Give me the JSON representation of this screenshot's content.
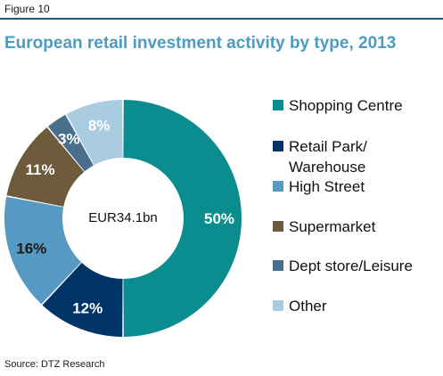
{
  "figure_label": "Figure 10",
  "source": "Source: DTZ Research",
  "colors": {
    "rule": "#1f5b73",
    "title": "#4c9cc0"
  },
  "chart_data": {
    "type": "pie",
    "variant": "donut",
    "title": "European retail investment activity by type, 2013",
    "center_label": "EUR34.1bn",
    "legend_position": "right",
    "slices": [
      {
        "name": "Shopping Centre",
        "value": 50,
        "label": "50%",
        "color": "#0b8c8f",
        "label_color": "#ffffff"
      },
      {
        "name": "Retail Park/ Warehouse",
        "value": 12,
        "label": "12%",
        "color": "#003366",
        "label_color": "#ffffff"
      },
      {
        "name": "High Street",
        "value": 16,
        "label": "16%",
        "color": "#5699c2",
        "label_color": "#1a1a1a"
      },
      {
        "name": "Supermarket",
        "value": 11,
        "label": "11%",
        "color": "#6e5b3c",
        "label_color": "#ffffff"
      },
      {
        "name": "Dept store/Leisure",
        "value": 3,
        "label": "3%",
        "color": "#4a6f8c",
        "label_color": "#ffffff"
      },
      {
        "name": "Other",
        "value": 8,
        "label": "8%",
        "color": "#a9cce0",
        "label_color": "#ffffff"
      }
    ]
  }
}
